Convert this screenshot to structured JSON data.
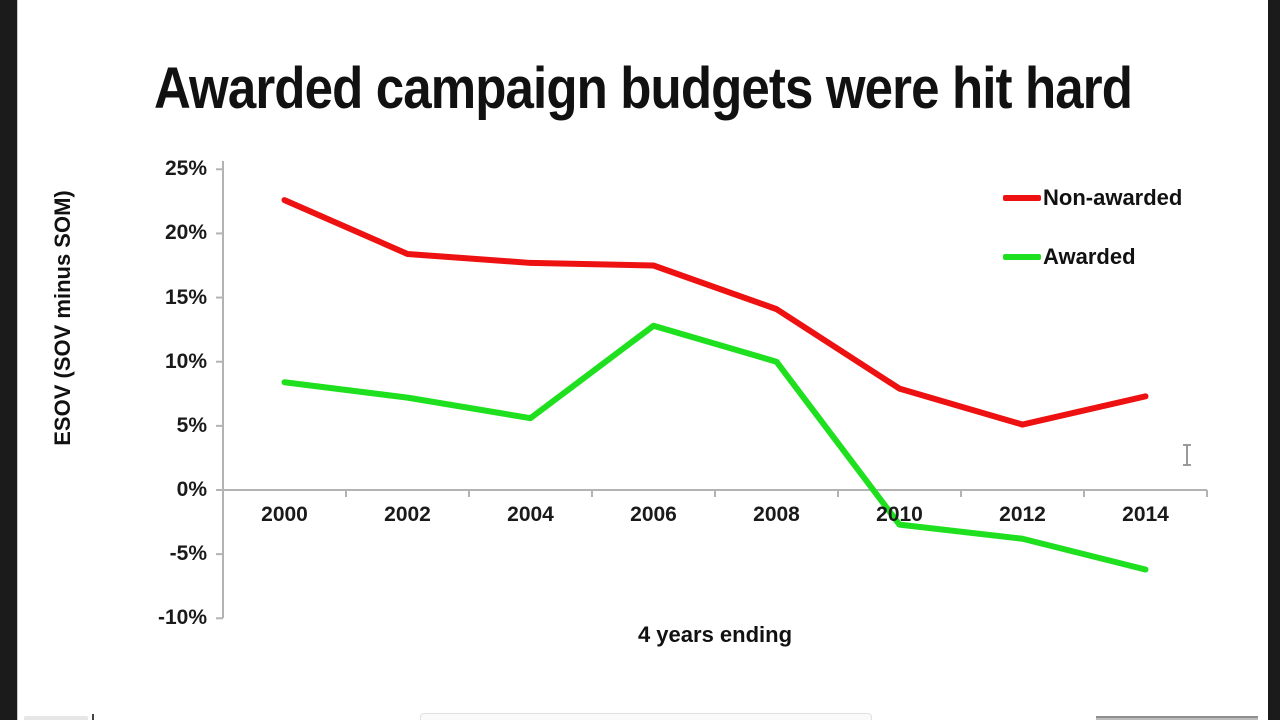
{
  "title": "Awarded campaign budgets were hit hard",
  "colors": {
    "non_awarded_line": "#ee1111",
    "awarded_line": "#1ee01e",
    "axis": "#b3b3b3",
    "text": "#111111",
    "letterbox": "#1b1b1b"
  },
  "icons": {
    "cursor": "i-beam-text-cursor"
  },
  "chart_data": {
    "type": "line",
    "title": "Awarded campaign budgets were hit hard",
    "categories": [
      "2000",
      "2002",
      "2004",
      "2006",
      "2008",
      "2010",
      "2012",
      "2014"
    ],
    "series": [
      {
        "name": "Non-awarded",
        "color": "#ee1111",
        "values": [
          22.6,
          18.4,
          17.7,
          17.5,
          14.1,
          7.9,
          5.1,
          7.3
        ]
      },
      {
        "name": "Awarded",
        "color": "#1ee01e",
        "values": [
          8.4,
          7.2,
          5.6,
          12.8,
          10.0,
          -2.7,
          -3.8,
          -6.2
        ]
      }
    ],
    "xlabel": "4 years ending",
    "ylabel": "ESOV (SOV minus SOM)",
    "ylim": [
      -10,
      25
    ],
    "ytick_step": 5,
    "ytick_labels": [
      "25%",
      "20%",
      "15%",
      "10%",
      "5%",
      "0%",
      "-5%",
      "-10%"
    ],
    "grid": false,
    "legend_position": "upper-right"
  }
}
